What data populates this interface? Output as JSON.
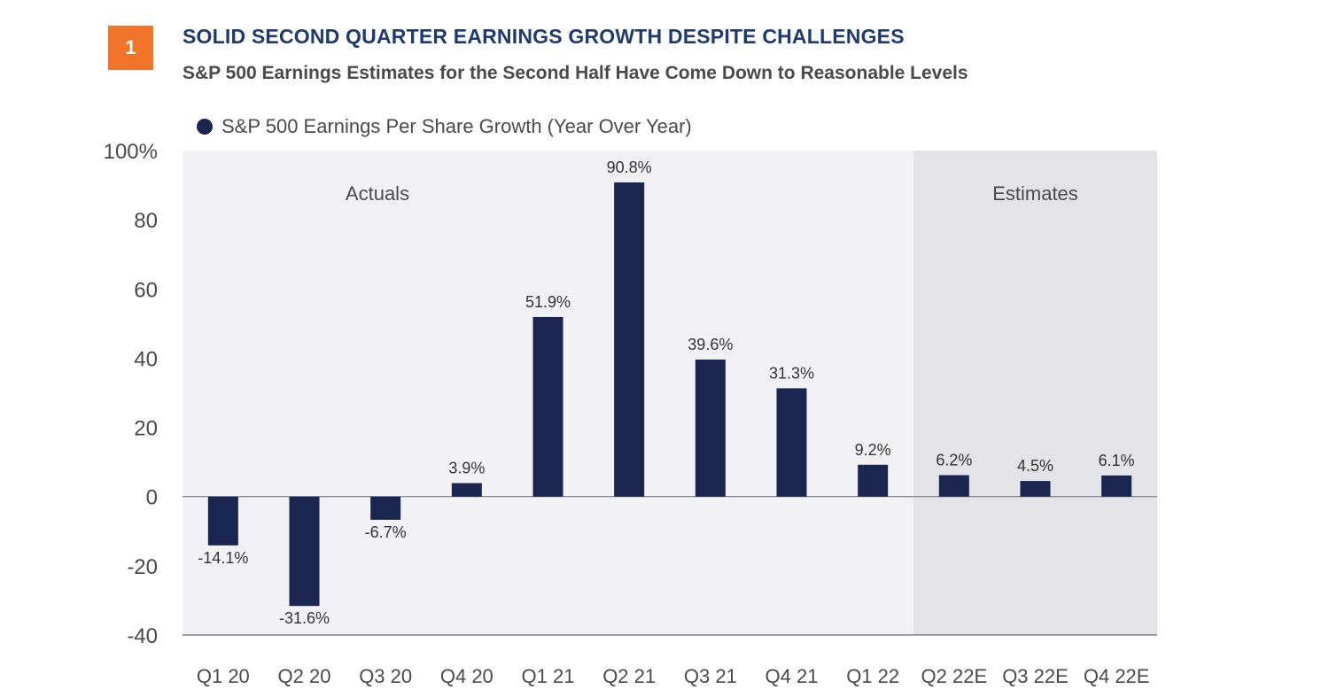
{
  "header": {
    "badge": "1",
    "title": "SOLID SECOND QUARTER EARNINGS GROWTH DESPITE CHALLENGES",
    "subtitle": "S&P 500 Earnings Estimates for the Second Half Have Come Down to Reasonable Levels"
  },
  "colors": {
    "accent": "#F2742B",
    "title": "#1E3A6E",
    "bar": "#1A2550",
    "actuals_bg": "#F2F2F4",
    "estimates_bg": "#E3E3E8",
    "text": "#4A4A4A"
  },
  "chart_data": {
    "type": "bar",
    "series": [
      {
        "name": "S&P 500 Earnings Per Share Growth (Year Over Year)",
        "values": [
          -14.1,
          -31.6,
          -6.7,
          3.9,
          51.9,
          90.8,
          39.6,
          31.3,
          9.2,
          6.2,
          4.5,
          6.1
        ]
      }
    ],
    "categories": [
      "Q1 20",
      "Q2 20",
      "Q3 20",
      "Q4 20",
      "Q1 21",
      "Q2 21",
      "Q3 21",
      "Q4 21",
      "Q1 22",
      "Q2 22E",
      "Q3 22E",
      "Q4 22E"
    ],
    "data_labels": [
      "-14.1%",
      "-31.6%",
      "-6.7%",
      "3.9%",
      "51.9%",
      "90.8%",
      "39.6%",
      "31.3%",
      "9.2%",
      "6.2%",
      "4.5%",
      "6.1%"
    ],
    "y_ticks": [
      "100%",
      "80",
      "60",
      "40",
      "20",
      "0",
      "-20",
      "-40"
    ],
    "y_tick_values": [
      100,
      80,
      60,
      40,
      20,
      0,
      -20,
      -40
    ],
    "ylim": [
      -40,
      100
    ],
    "regions": [
      {
        "label": "Actuals",
        "from_index": 0,
        "to_index": 8
      },
      {
        "label": "Estimates",
        "from_index": 9,
        "to_index": 11
      }
    ],
    "grid": false,
    "legend_position": "top-left"
  }
}
